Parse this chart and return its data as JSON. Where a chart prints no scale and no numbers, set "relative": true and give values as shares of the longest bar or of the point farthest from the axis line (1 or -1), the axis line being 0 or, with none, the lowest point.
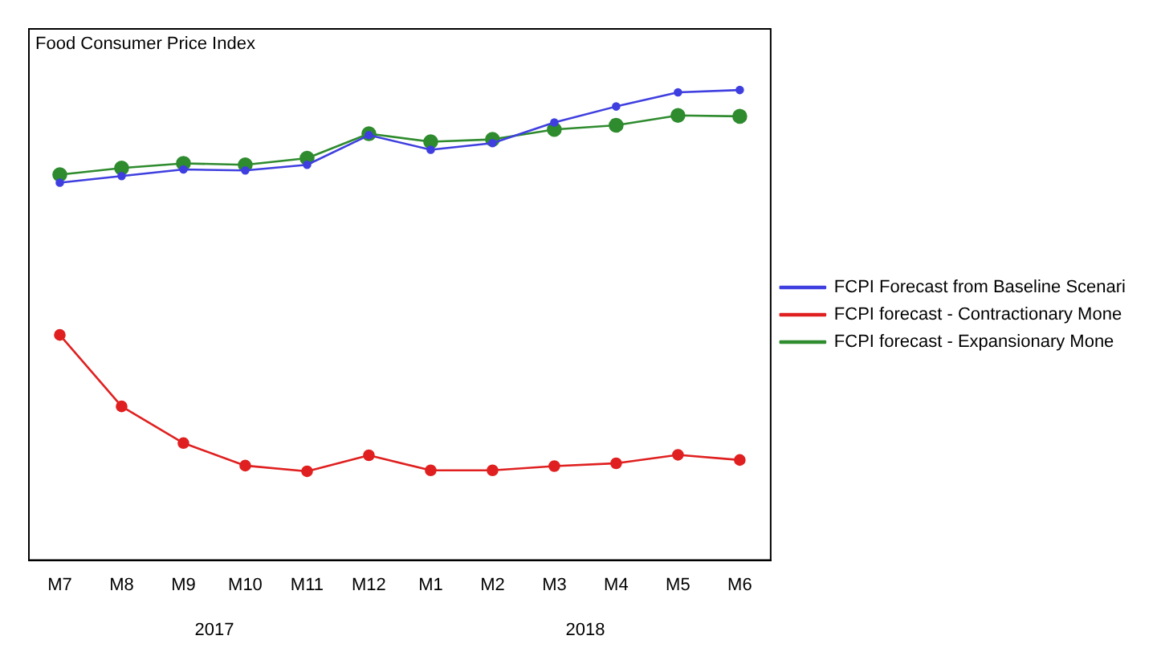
{
  "chart_data": {
    "type": "line",
    "title": "Food Consumer Price Index",
    "relative": true,
    "categories": [
      "M7",
      "M8",
      "M9",
      "M10",
      "M11",
      "M12",
      "M1",
      "M2",
      "M3",
      "M4",
      "M5",
      "M6"
    ],
    "series": [
      {
        "name": "FCPI Forecast from Baseline Scenari",
        "color": "#3f3fe0",
        "values": [
          0.803,
          0.817,
          0.831,
          0.829,
          0.841,
          0.904,
          0.873,
          0.887,
          0.931,
          0.965,
          0.995,
          1
        ]
      },
      {
        "name": "FCPI forecast - Contractionary Mone",
        "color": "#e02020",
        "values": [
          0.479,
          0.327,
          0.249,
          0.201,
          0.189,
          0.223,
          0.191,
          0.191,
          0.2,
          0.206,
          0.224,
          0.213
        ]
      },
      {
        "name": "FCPI forecast - Expansionary Mone",
        "color": "#2e8b2e",
        "values": [
          0.82,
          0.834,
          0.844,
          0.841,
          0.855,
          0.907,
          0.89,
          0.895,
          0.916,
          0.925,
          0.946,
          0.944
        ]
      }
    ],
    "annotations": [
      "2017",
      "2018"
    ],
    "legend": "right",
    "marker": "circle",
    "line_style": "solid",
    "grid": false
  }
}
